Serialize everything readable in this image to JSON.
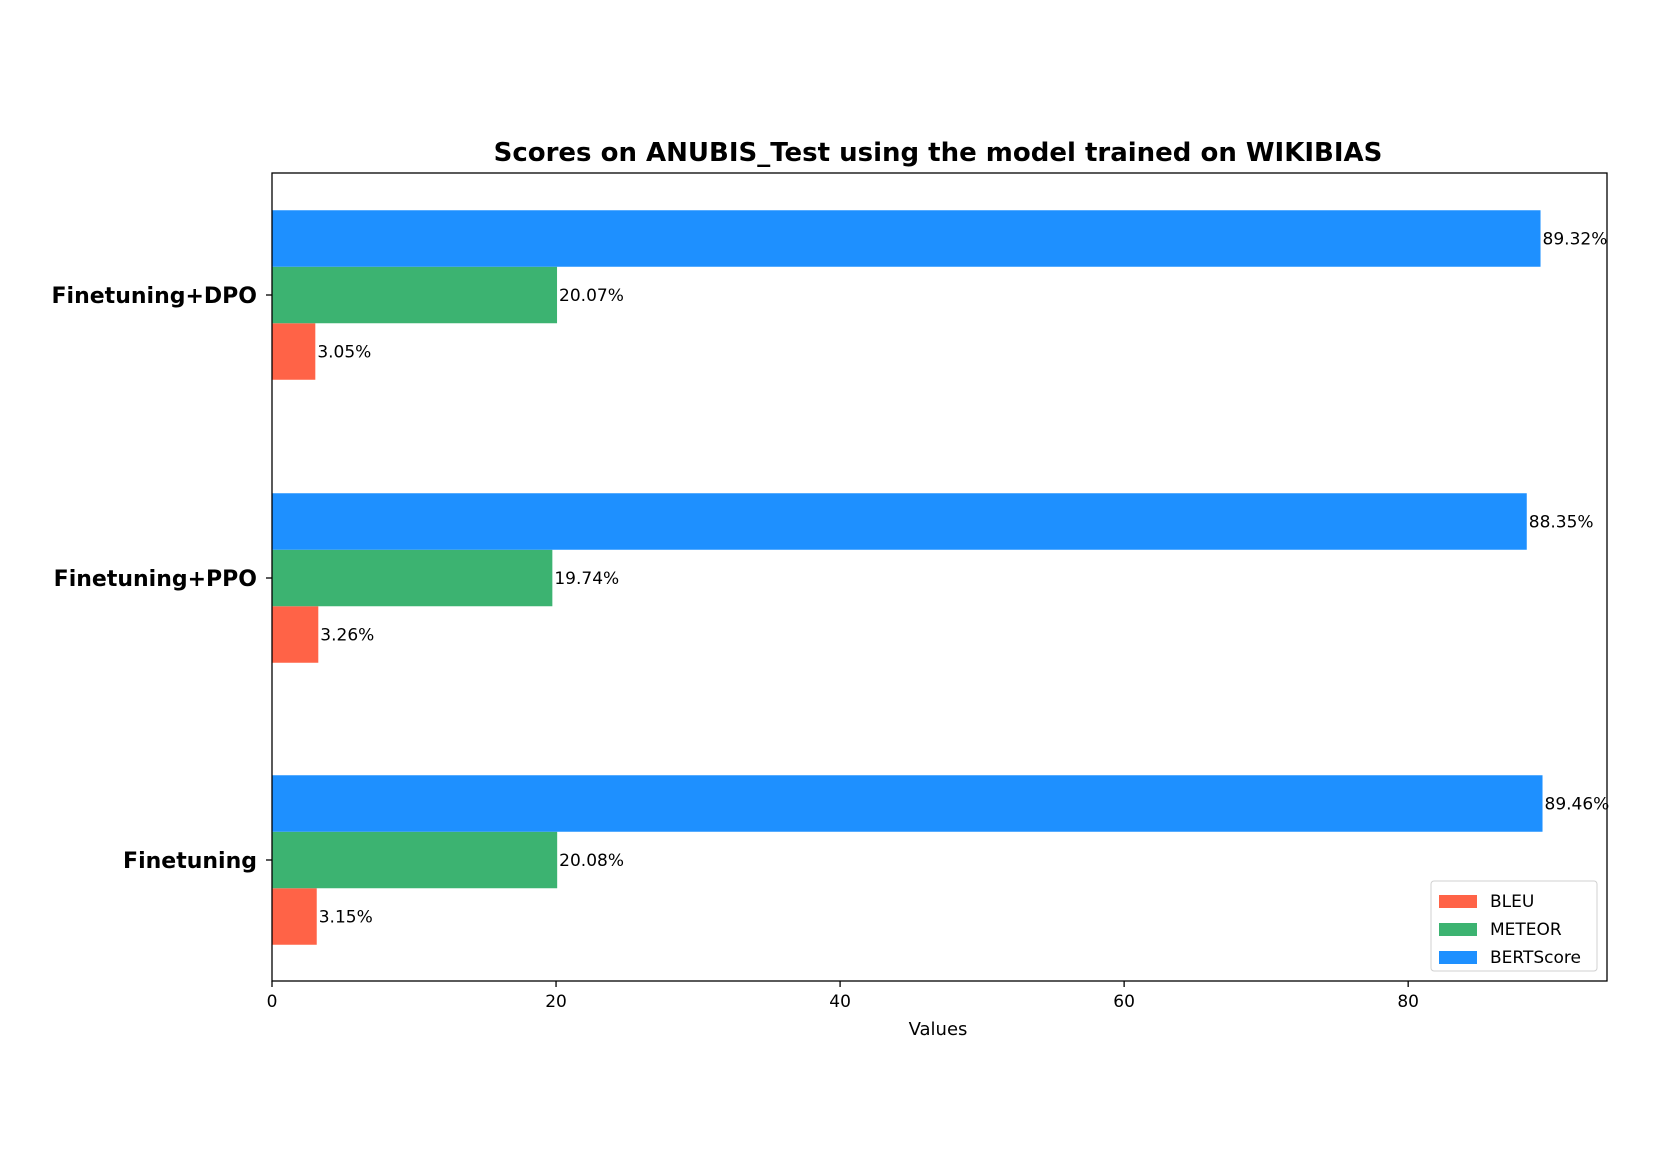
{
  "chart_data": {
    "type": "bar",
    "orientation": "horizontal",
    "title": "Scores on ANUBIS_Test using the model trained on WIKIBIAS",
    "xlabel": "Values",
    "ylabel": "",
    "xlim": [
      0,
      94
    ],
    "xticks": [
      0,
      20,
      40,
      60,
      80
    ],
    "grid": false,
    "legend_position": "bottom-right",
    "categories": [
      "Finetuning+DPO",
      "Finetuning+PPO",
      "Finetuning"
    ],
    "series": [
      {
        "name": "BLEU",
        "color": "#ff6347",
        "values": [
          3.05,
          3.26,
          3.15
        ],
        "labels": [
          "3.05%",
          "3.26%",
          "3.15%"
        ]
      },
      {
        "name": "METEOR",
        "color": "#3cb371",
        "values": [
          20.07,
          19.74,
          20.08
        ],
        "labels": [
          "20.07%",
          "19.74%",
          "20.08%"
        ]
      },
      {
        "name": "BERTScore",
        "color": "#1e90ff",
        "values": [
          89.32,
          88.35,
          89.46
        ],
        "labels": [
          "89.32%",
          "88.35%",
          "89.46%"
        ]
      }
    ]
  }
}
